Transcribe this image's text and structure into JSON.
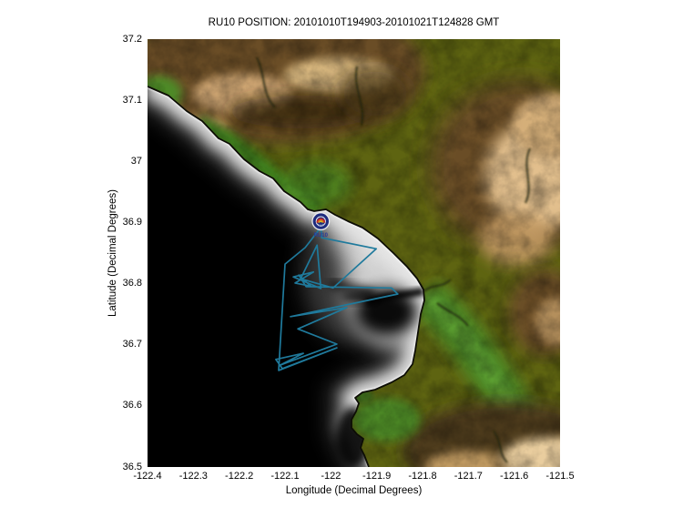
{
  "figure": {
    "title": "RU10 POSITION: 20101010T194903-20101021T124828 GMT",
    "xlabel": "Longitude (Decimal Degrees)",
    "ylabel": "Latitude (Decimal Degrees)",
    "x_ticks": [
      "-122.4",
      "-122.3",
      "-122.2",
      "-122.1",
      "-122",
      "-121.9",
      "-121.8",
      "-121.7",
      "-121.6",
      "-121.5"
    ],
    "y_ticks": [
      "37.2",
      "37.1",
      "37",
      "36.9",
      "36.8",
      "36.7",
      "36.6",
      "36.5"
    ]
  },
  "glider": {
    "label": "RU10",
    "marker_lon": -122.022,
    "marker_lat": 36.902
  },
  "chart_data": {
    "type": "line",
    "title": "RU10 POSITION: 20101010T194903-20101021T124828 GMT",
    "xlabel": "Longitude (Decimal Degrees)",
    "ylabel": "Latitude (Decimal Degrees)",
    "xlim": [
      -122.4,
      -121.5
    ],
    "ylim": [
      36.5,
      37.2
    ],
    "grid": false,
    "legend": "none",
    "basemap": "shaded-relief terrain and bathymetry of Monterey Bay, California",
    "series": [
      {
        "name": "RU10 glider track",
        "color": "#1F7A9C",
        "points": [
          [
            -122.022,
            36.893
          ],
          [
            -122.02,
            36.875
          ],
          [
            -121.901,
            36.857
          ],
          [
            -121.995,
            36.793
          ],
          [
            -122.066,
            36.808
          ],
          [
            -122.03,
            36.863
          ],
          [
            -122.022,
            36.792
          ],
          [
            -122.082,
            36.811
          ],
          [
            -122.038,
            36.819
          ],
          [
            -122.078,
            36.801
          ],
          [
            -122.044,
            36.796
          ],
          [
            -122.07,
            36.814
          ],
          [
            -122.054,
            36.795
          ],
          [
            -121.868,
            36.793
          ],
          [
            -121.854,
            36.783
          ],
          [
            -122.088,
            36.746
          ],
          [
            -121.965,
            36.761
          ],
          [
            -122.072,
            36.726
          ],
          [
            -121.987,
            36.701
          ],
          [
            -122.11,
            36.667
          ],
          [
            -122.06,
            36.686
          ],
          [
            -122.12,
            36.676
          ],
          [
            -122.106,
            36.661
          ],
          [
            -121.987,
            36.695
          ],
          [
            -122.114,
            36.658
          ],
          [
            -122.1,
            36.832
          ],
          [
            -122.056,
            36.859
          ],
          [
            -122.022,
            36.892
          ]
        ]
      }
    ],
    "marker": {
      "label": "RU10",
      "lon": -122.022,
      "lat": 36.902
    }
  },
  "colors": {
    "track": "#1F7A9C",
    "ocean_deep": "#000000",
    "shelf_light": "#DCDCDC",
    "land_olive": "#5E6411",
    "lowland_green": "#4C8826",
    "mountain_brown": "#6B4D26",
    "mountain_tan": "#E2BF8D",
    "marker_navy": "#1E2B7E",
    "marker_ring": "#ECECEC",
    "rainbow": [
      "#CC2222",
      "#E07818",
      "#E8C818"
    ],
    "marker_label_blue": "#2A3A9A",
    "text": "#000000"
  }
}
